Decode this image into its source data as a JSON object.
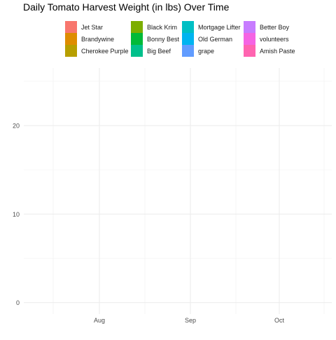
{
  "chart_data": {
    "type": "area",
    "title": "Daily Tomato Harvest Weight (in lbs) Over Time",
    "xlabel": "",
    "ylabel": "",
    "x_ticks": [
      "Aug",
      "Sep",
      "Oct"
    ],
    "y_ticks": [
      0,
      10,
      20
    ],
    "ylim": [
      -1.3,
      26.5
    ],
    "grid": true,
    "legend_position": "top",
    "legend": [
      {
        "name": "Jet Star",
        "color": "#F8766D"
      },
      {
        "name": "Brandywine",
        "color": "#DE8C00"
      },
      {
        "name": "Cherokee Purple",
        "color": "#B79F00"
      },
      {
        "name": "Black Krim",
        "color": "#7CAE00"
      },
      {
        "name": "Bonny Best",
        "color": "#00BA38"
      },
      {
        "name": "Big Beef",
        "color": "#00C08B"
      },
      {
        "name": "Mortgage Lifter",
        "color": "#00BFC4"
      },
      {
        "name": "Old German",
        "color": "#00B4F0"
      },
      {
        "name": "grape",
        "color": "#619CFF"
      },
      {
        "name": "Better Boy",
        "color": "#C77CFF"
      },
      {
        "name": "volunteers",
        "color": "#F564E3"
      },
      {
        "name": "Amish Paste",
        "color": "#FF64B0"
      }
    ],
    "series": []
  }
}
